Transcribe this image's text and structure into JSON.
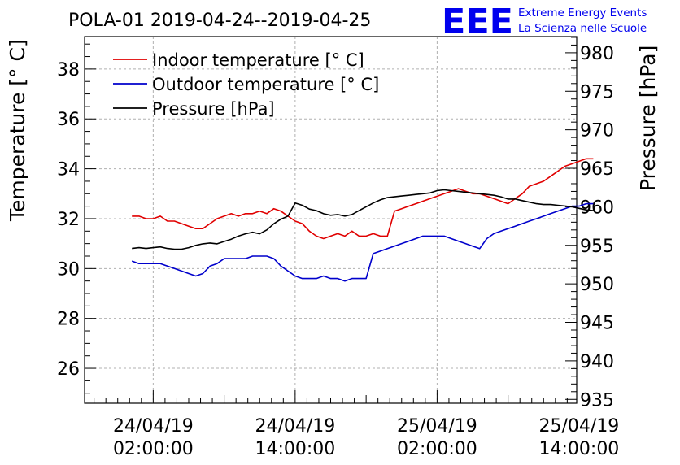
{
  "chart_data": {
    "type": "line",
    "title": "POLA-01 2019-04-24--2019-04-25",
    "ylabel": "Temperature [° C]",
    "y2label": "Pressure [hPa]",
    "xlabel": "",
    "ylim": [
      24.6,
      39.3
    ],
    "y2lim": [
      934.5,
      982.1
    ],
    "xlim": [
      -5.8,
      35.8
    ],
    "grid": true,
    "legend_position": "top-left",
    "yticks": [
      26,
      28,
      30,
      32,
      34,
      36,
      38
    ],
    "y2ticks": [
      935,
      940,
      945,
      950,
      955,
      960,
      965,
      970,
      975,
      980
    ],
    "xticks": [
      {
        "x": 0,
        "line1": "24/04/19",
        "line2": "02:00:00"
      },
      {
        "x": 12,
        "line1": "24/04/19",
        "line2": "14:00:00"
      },
      {
        "x": 24,
        "line1": "25/04/19",
        "line2": "02:00:00"
      },
      {
        "x": 36,
        "line1": "25/04/19",
        "line2": "14:00:00"
      }
    ],
    "series": [
      {
        "name": "Indoor temperature [° C]",
        "axis": "left",
        "color": "#e00000",
        "x": [
          -1.8,
          -1.2,
          -0.6,
          0.0,
          0.6,
          1.2,
          1.8,
          2.4,
          3.0,
          3.6,
          4.2,
          4.8,
          5.4,
          6.0,
          6.6,
          7.2,
          7.8,
          8.4,
          9.0,
          9.6,
          10.2,
          10.8,
          11.4,
          12.0,
          12.6,
          13.2,
          13.8,
          14.4,
          15.0,
          15.6,
          16.2,
          16.8,
          17.4,
          18.0,
          18.6,
          19.2,
          19.8,
          20.4,
          21.0,
          21.6,
          22.2,
          22.8,
          23.4,
          24.0,
          24.6,
          25.2,
          25.8,
          26.4,
          27.0,
          27.6,
          28.2,
          28.8,
          29.4,
          30.0,
          30.6,
          31.2,
          31.8,
          32.4,
          33.0,
          33.6,
          34.2,
          34.8,
          35.4,
          36.0,
          36.6,
          37.2
        ],
        "values": [
          32.1,
          32.1,
          32.0,
          32.0,
          32.1,
          31.9,
          31.9,
          31.8,
          31.7,
          31.6,
          31.6,
          31.8,
          32.0,
          32.1,
          32.2,
          32.1,
          32.2,
          32.2,
          32.3,
          32.2,
          32.4,
          32.3,
          32.1,
          31.9,
          31.8,
          31.5,
          31.3,
          31.2,
          31.3,
          31.4,
          31.3,
          31.5,
          31.3,
          31.3,
          31.4,
          31.3,
          31.3,
          32.3,
          32.4,
          32.5,
          32.6,
          32.7,
          32.8,
          32.9,
          33.0,
          33.1,
          33.2,
          33.1,
          33.0,
          33.0,
          32.9,
          32.8,
          32.7,
          32.6,
          32.8,
          33.0,
          33.3,
          33.4,
          33.5,
          33.7,
          33.9,
          34.1,
          34.2,
          34.3,
          34.4,
          34.4
        ]
      },
      {
        "name": "Outdoor temperature [° C]",
        "axis": "left",
        "color": "#0000cc",
        "x": [
          -1.8,
          -1.2,
          -0.6,
          0.0,
          0.6,
          1.2,
          1.8,
          2.4,
          3.0,
          3.6,
          4.2,
          4.8,
          5.4,
          6.0,
          6.6,
          7.2,
          7.8,
          8.4,
          9.0,
          9.6,
          10.2,
          10.8,
          11.4,
          12.0,
          12.6,
          13.2,
          13.8,
          14.4,
          15.0,
          15.6,
          16.2,
          16.8,
          17.4,
          18.0,
          18.6,
          19.2,
          19.8,
          20.4,
          21.0,
          21.6,
          22.2,
          22.8,
          23.4,
          24.0,
          24.6,
          25.2,
          25.8,
          26.4,
          27.0,
          27.6,
          28.2,
          28.8,
          29.4,
          30.0,
          30.6,
          31.2,
          31.8,
          32.4,
          33.0,
          33.6,
          34.2,
          34.8,
          35.4,
          36.0,
          36.6,
          37.2
        ],
        "values": [
          30.3,
          30.2,
          30.2,
          30.2,
          30.2,
          30.1,
          30.0,
          29.9,
          29.8,
          29.7,
          29.8,
          30.1,
          30.2,
          30.4,
          30.4,
          30.4,
          30.4,
          30.5,
          30.5,
          30.5,
          30.4,
          30.1,
          29.9,
          29.7,
          29.6,
          29.6,
          29.6,
          29.7,
          29.6,
          29.6,
          29.5,
          29.6,
          29.6,
          29.6,
          30.6,
          30.7,
          30.8,
          30.9,
          31.0,
          31.1,
          31.2,
          31.3,
          31.3,
          31.3,
          31.3,
          31.2,
          31.1,
          31.0,
          30.9,
          30.8,
          31.2,
          31.4,
          31.5,
          31.6,
          31.7,
          31.8,
          31.9,
          32.0,
          32.1,
          32.2,
          32.3,
          32.4,
          32.5,
          32.5,
          32.6,
          32.6
        ]
      },
      {
        "name": "Pressure [hPa]",
        "axis": "right",
        "color": "#000000",
        "x": [
          -1.8,
          -1.2,
          -0.6,
          0.0,
          0.6,
          1.2,
          1.8,
          2.4,
          3.0,
          3.6,
          4.2,
          4.8,
          5.4,
          6.0,
          6.6,
          7.2,
          7.8,
          8.4,
          9.0,
          9.6,
          10.2,
          10.8,
          11.4,
          12.0,
          12.6,
          13.2,
          13.8,
          14.4,
          15.0,
          15.6,
          16.2,
          16.8,
          17.4,
          18.0,
          18.6,
          19.2,
          19.8,
          20.4,
          21.0,
          21.6,
          22.2,
          22.8,
          23.4,
          24.0,
          24.6,
          25.2,
          25.8,
          26.4,
          27.0,
          27.6,
          28.2,
          28.8,
          29.4,
          30.0,
          30.6,
          31.2,
          31.8,
          32.4,
          33.0,
          33.6,
          34.2,
          34.8,
          35.4,
          36.0,
          36.6,
          37.2
        ],
        "values": [
          954.6,
          954.7,
          954.6,
          954.7,
          954.8,
          954.6,
          954.5,
          954.5,
          954.7,
          955.0,
          955.2,
          955.3,
          955.2,
          955.5,
          955.8,
          956.2,
          956.5,
          956.7,
          956.5,
          957.0,
          957.8,
          958.4,
          958.8,
          960.5,
          960.2,
          959.7,
          959.5,
          959.1,
          958.9,
          959.0,
          958.8,
          959.0,
          959.5,
          960.0,
          960.5,
          960.9,
          961.2,
          961.3,
          961.4,
          961.5,
          961.6,
          961.7,
          961.8,
          962.1,
          962.2,
          962.1,
          962.0,
          961.9,
          961.8,
          961.7,
          961.6,
          961.5,
          961.3,
          961.0,
          961.0,
          960.8,
          960.6,
          960.4,
          960.3,
          960.3,
          960.2,
          960.1,
          960.0,
          959.8,
          959.6,
          959.5
        ]
      }
    ]
  },
  "logo": {
    "mark": "EEE",
    "line1": "Extreme Energy Events",
    "line2": "La Scienza nelle Scuole",
    "color": "#0000ee"
  }
}
